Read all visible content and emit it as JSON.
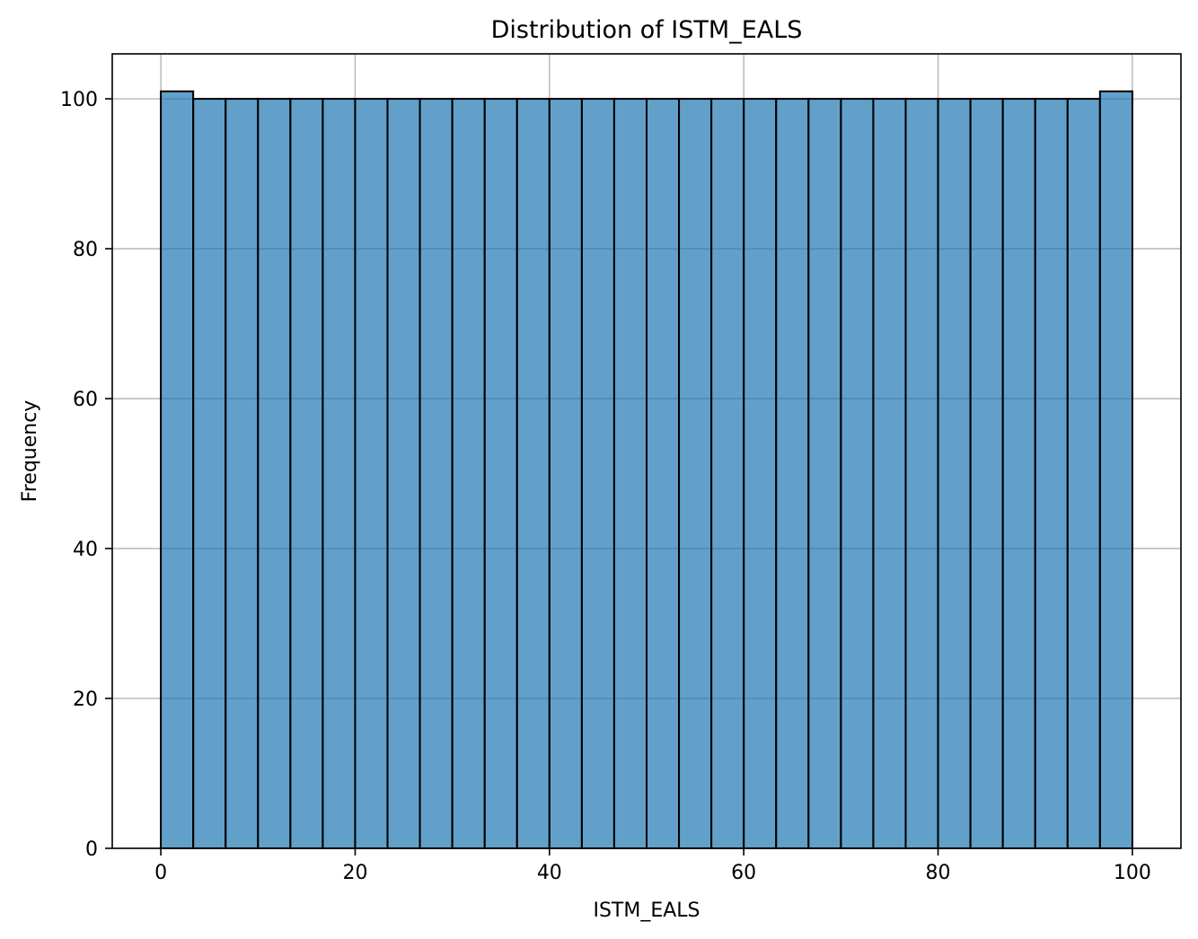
{
  "chart_data": {
    "type": "bar",
    "title": "Distribution of ISTM_EALS",
    "xlabel": "ISTM_EALS",
    "ylabel": "Frequency",
    "bins": {
      "start": 0,
      "end": 100,
      "count": 30
    },
    "values": [
      101,
      100,
      100,
      100,
      100,
      100,
      100,
      100,
      100,
      100,
      100,
      100,
      100,
      100,
      100,
      100,
      100,
      100,
      100,
      100,
      100,
      100,
      100,
      100,
      100,
      100,
      100,
      100,
      100,
      101
    ],
    "xlim": [
      -5,
      105
    ],
    "ylim": [
      0,
      106
    ],
    "xticks": [
      "0",
      "20",
      "40",
      "60",
      "80",
      "100"
    ],
    "yticks": [
      "0",
      "20",
      "40",
      "60",
      "80",
      "100"
    ],
    "grid": true,
    "colors": {
      "bar_fill": "#1f77b4",
      "bar_edge": "#000000",
      "grid": "#b0b0b0"
    }
  }
}
